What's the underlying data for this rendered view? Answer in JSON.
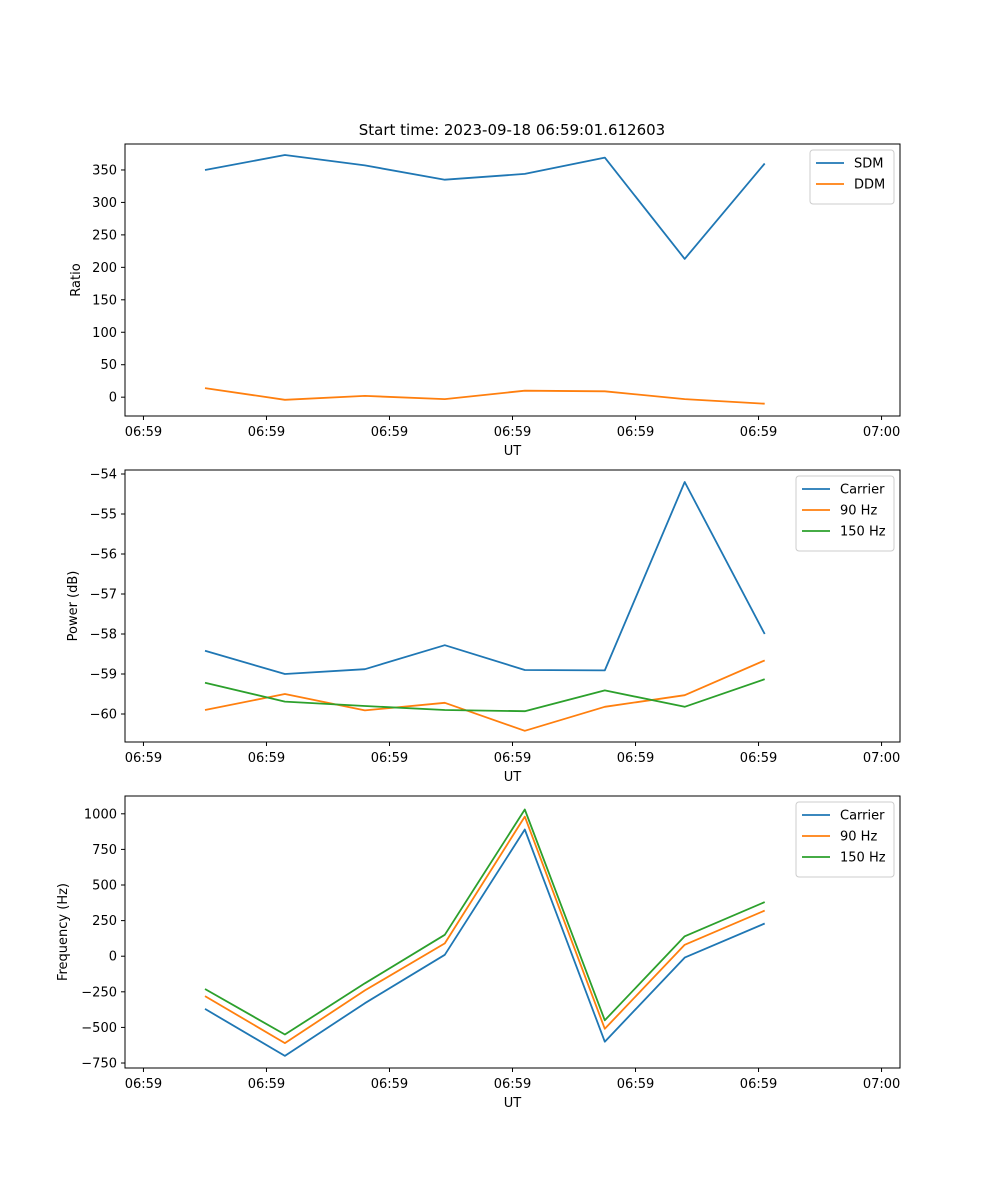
{
  "title": "Start time: 2023-09-18 06:59:01.612603",
  "colors": {
    "c0": "#1f77b4",
    "c1": "#ff7f0e",
    "c2": "#2ca02c"
  },
  "chart_data": [
    {
      "type": "line",
      "title": "Start time: 2023-09-18 06:59:01.612603",
      "xlabel": "UT",
      "ylabel": "Ratio",
      "x_ticks": [
        "06:59",
        "06:59",
        "06:59",
        "06:59",
        "06:59",
        "06:59",
        "07:00"
      ],
      "x_tick_pos": [
        0,
        1,
        2,
        3,
        4,
        5,
        6
      ],
      "xlim": [
        -0.15,
        6.15
      ],
      "x": [
        0.5,
        1.15,
        1.8,
        2.45,
        3.1,
        3.75,
        4.4,
        5.05
      ],
      "ylim": [
        -29,
        390
      ],
      "y_ticks": [
        0,
        50,
        100,
        150,
        200,
        250,
        300,
        350
      ],
      "legend": "top-right",
      "series": [
        {
          "name": "SDM",
          "color": "#1f77b4",
          "values": [
            350,
            373,
            357,
            335,
            344,
            369,
            213,
            360
          ]
        },
        {
          "name": "DDM",
          "color": "#ff7f0e",
          "values": [
            14,
            -4,
            2,
            -3,
            10,
            9,
            -3,
            -10
          ]
        }
      ]
    },
    {
      "type": "line",
      "title": "",
      "xlabel": "UT",
      "ylabel": "Power (dB)",
      "x_ticks": [
        "06:59",
        "06:59",
        "06:59",
        "06:59",
        "06:59",
        "06:59",
        "07:00"
      ],
      "x_tick_pos": [
        0,
        1,
        2,
        3,
        4,
        5,
        6
      ],
      "xlim": [
        -0.15,
        6.15
      ],
      "x": [
        0.5,
        1.15,
        1.8,
        2.45,
        3.1,
        3.75,
        4.4,
        5.05
      ],
      "ylim": [
        -60.7,
        -53.9
      ],
      "y_ticks": [
        -60,
        -59,
        -58,
        -57,
        -56,
        -55,
        -54
      ],
      "y_tick_labels": [
        "−60",
        "−59",
        "−58",
        "−57",
        "−56",
        "−55",
        "−54"
      ],
      "legend": "top-right",
      "series": [
        {
          "name": "Carrier",
          "color": "#1f77b4",
          "values": [
            -58.42,
            -59.0,
            -58.88,
            -58.28,
            -58.9,
            -58.91,
            -54.2,
            -58.0
          ]
        },
        {
          "name": "90 Hz",
          "color": "#ff7f0e",
          "values": [
            -59.9,
            -59.5,
            -59.91,
            -59.72,
            -60.42,
            -59.82,
            -59.53,
            -58.66
          ]
        },
        {
          "name": "150 Hz",
          "color": "#2ca02c",
          "values": [
            -59.22,
            -59.69,
            -59.8,
            -59.9,
            -59.93,
            -59.41,
            -59.82,
            -59.13
          ]
        }
      ]
    },
    {
      "type": "line",
      "title": "",
      "xlabel": "UT",
      "ylabel": "Frequency (Hz)",
      "x_ticks": [
        "06:59",
        "06:59",
        "06:59",
        "06:59",
        "06:59",
        "06:59",
        "07:00"
      ],
      "x_tick_pos": [
        0,
        1,
        2,
        3,
        4,
        5,
        6
      ],
      "xlim": [
        -0.15,
        6.15
      ],
      "x": [
        0.5,
        1.15,
        1.8,
        2.45,
        3.1,
        3.75,
        4.4,
        5.05
      ],
      "ylim": [
        -785,
        1125
      ],
      "y_ticks": [
        -750,
        -500,
        -250,
        0,
        250,
        500,
        750,
        1000
      ],
      "y_tick_labels": [
        "−750",
        "−500",
        "−250",
        "0",
        "250",
        "500",
        "750",
        "1000"
      ],
      "legend": "top-right",
      "series": [
        {
          "name": "Carrier",
          "color": "#1f77b4",
          "values": [
            -370,
            -700,
            -330,
            10,
            890,
            -600,
            -10,
            230
          ]
        },
        {
          "name": "90 Hz",
          "color": "#ff7f0e",
          "values": [
            -280,
            -610,
            -240,
            90,
            980,
            -510,
            80,
            320
          ]
        },
        {
          "name": "150 Hz",
          "color": "#2ca02c",
          "values": [
            -230,
            -550,
            -190,
            150,
            1030,
            -450,
            140,
            380
          ]
        }
      ]
    }
  ]
}
